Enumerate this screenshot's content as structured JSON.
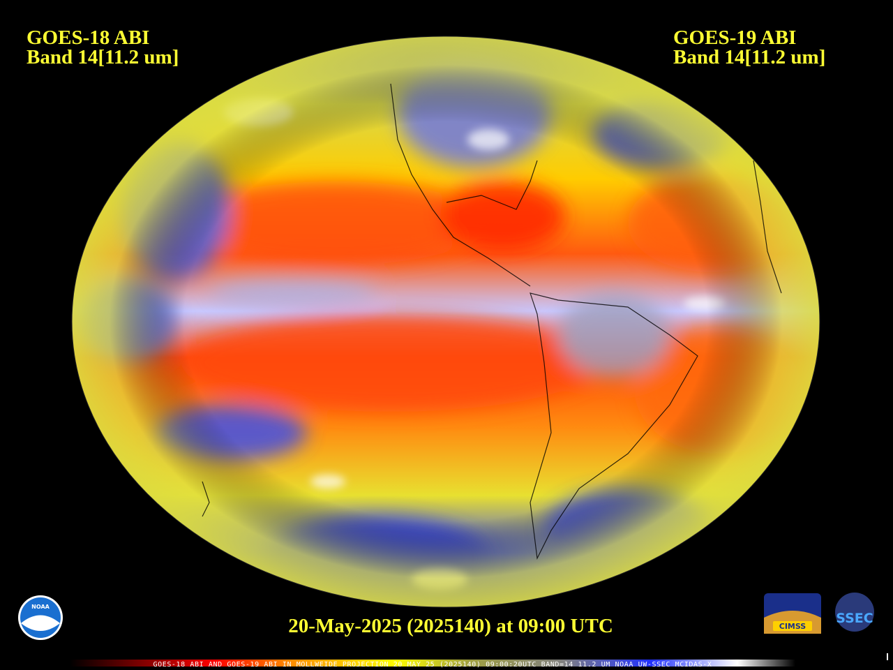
{
  "header": {
    "left": {
      "satellite": "GOES-18 ABI",
      "band": "Band 14[11.2 um]"
    },
    "right": {
      "satellite": "GOES-19 ABI",
      "band": "Band 14[11.2 um]"
    }
  },
  "timestamp": "20-May-2025 (2025140) at 09:00 UTC",
  "footer": "GOES-18 ABI AND GOES-19 ABI IN MOLLWEIDE PROJECTION 20 MAY 25 (2025140) 09:00:20UTC BAND=14 11.2 UM NOAA UW-SSEC MCIDAS-X",
  "logos": {
    "noaa": "NOAA",
    "cimss": "CIMSS",
    "ssec": "SSEC"
  }
}
